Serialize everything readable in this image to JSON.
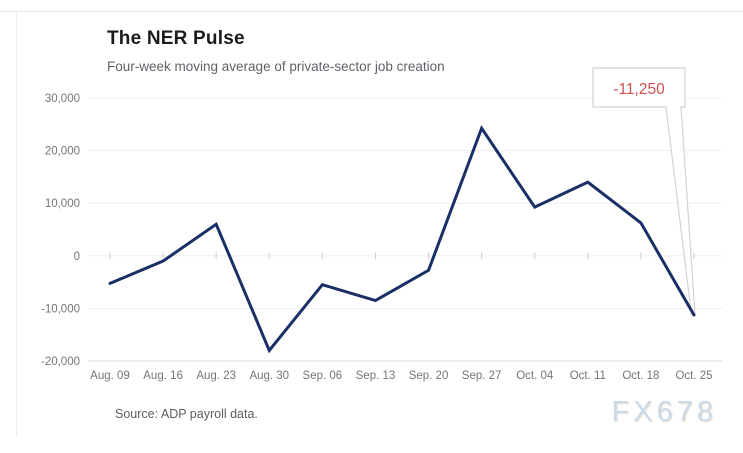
{
  "header": {
    "title": "The NER Pulse",
    "subtitle": "Four-week moving average of private-sector job creation"
  },
  "footer": {
    "source": "Source: ADP payroll data."
  },
  "watermark": "FX678",
  "colors": {
    "line": "#1b2f67",
    "gridline": "#ededed",
    "baseline": "#d9d9d9",
    "axis_text": "#757575",
    "annotation_text": "#d0504f",
    "annotation_border": "#d2d2d2",
    "zero_tick": "#cfcfcf"
  },
  "chart_data": {
    "type": "line",
    "title": "The NER Pulse",
    "subtitle": "Four-week moving average of private-sector job creation",
    "categories": [
      "Aug. 09",
      "Aug. 16",
      "Aug. 23",
      "Aug. 30",
      "Sep. 06",
      "Sep. 13",
      "Sep. 20",
      "Sep. 27",
      "Oct. 04",
      "Oct. 11",
      "Oct. 18",
      "Oct. 25"
    ],
    "series": [
      {
        "name": "Four-week moving average of private-sector job creation",
        "values": [
          -5250,
          -1000,
          6000,
          -18000,
          -5500,
          -8500,
          -2750,
          24250,
          9250,
          14000,
          6250,
          -11250
        ]
      }
    ],
    "xlabel": "",
    "ylabel": "",
    "ylim": [
      -20000,
      30000
    ],
    "yticks": [
      30000,
      20000,
      10000,
      0,
      -10000,
      -20000
    ],
    "ytick_labels": [
      "30,000",
      "20,000",
      "10,000",
      "0",
      "-10,000",
      "-20,000"
    ],
    "grid": true,
    "legend": "none",
    "annotation": {
      "category": "Oct. 25",
      "index": 11,
      "text": "-11,250"
    }
  }
}
